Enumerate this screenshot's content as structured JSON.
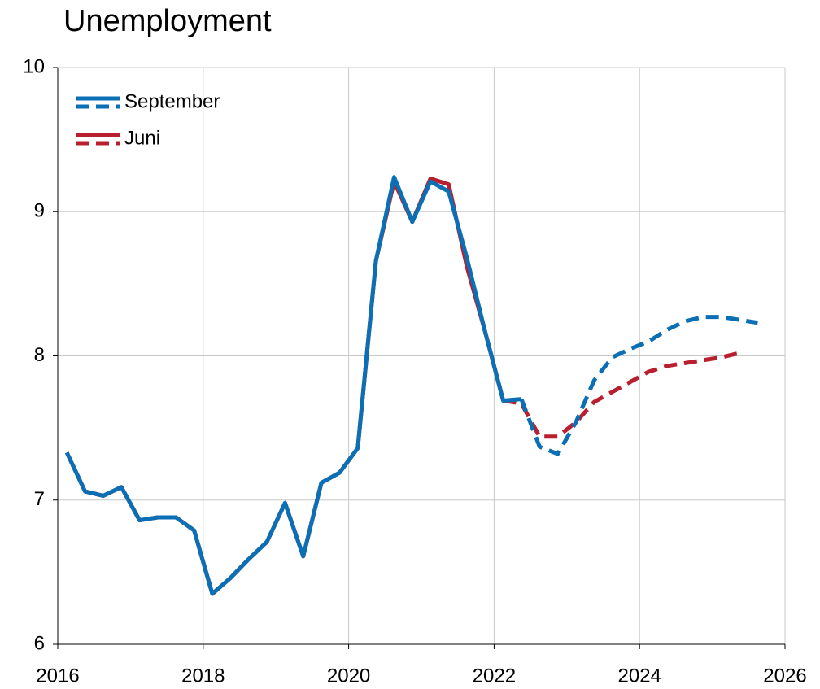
{
  "chart_data": {
    "type": "line",
    "title": "Unemployment",
    "x": [
      2016.125,
      2016.375,
      2016.625,
      2016.875,
      2017.125,
      2017.375,
      2017.625,
      2017.875,
      2018.125,
      2018.375,
      2018.625,
      2018.875,
      2019.125,
      2019.375,
      2019.625,
      2019.875,
      2020.125,
      2020.375,
      2020.625,
      2020.875,
      2021.125,
      2021.375,
      2021.625,
      2021.875,
      2022.125,
      2022.375,
      2022.625,
      2022.875,
      2023.125,
      2023.375,
      2023.625,
      2023.875,
      2024.125,
      2024.375,
      2024.625,
      2024.875,
      2025.125,
      2025.375,
      2025.625
    ],
    "series": [
      {
        "name": "September",
        "color": "#0a6fb4",
        "dash_from": 25,
        "values": [
          7.33,
          7.06,
          7.03,
          7.09,
          6.86,
          6.88,
          6.88,
          6.79,
          6.35,
          6.46,
          6.59,
          6.71,
          6.98,
          6.61,
          7.12,
          7.19,
          7.36,
          8.66,
          9.24,
          8.93,
          9.21,
          9.14,
          8.68,
          8.17,
          7.69,
          7.7,
          7.37,
          7.32,
          7.54,
          7.83,
          7.99,
          8.05,
          8.1,
          8.18,
          8.24,
          8.27,
          8.27,
          8.25,
          8.23
        ]
      },
      {
        "name": "Juni",
        "color": "#b8202f",
        "dash_from": 24,
        "values": [
          7.33,
          7.06,
          7.03,
          7.09,
          6.86,
          6.88,
          6.88,
          6.79,
          6.35,
          6.46,
          6.59,
          6.71,
          6.98,
          6.61,
          7.12,
          7.19,
          7.36,
          8.66,
          9.21,
          8.93,
          9.23,
          9.19,
          8.62,
          8.17,
          7.69,
          7.67,
          7.44,
          7.44,
          7.54,
          7.68,
          7.75,
          7.82,
          7.89,
          7.93,
          7.95,
          7.97,
          7.99,
          8.02,
          null
        ]
      }
    ],
    "xlim": [
      2016,
      2026
    ],
    "xticks": [
      2016,
      2018,
      2020,
      2022,
      2024,
      2026
    ],
    "ylim": [
      6,
      10
    ],
    "yticks": [
      6,
      7,
      8,
      9,
      10
    ],
    "grid": true,
    "legend": "upper left"
  }
}
